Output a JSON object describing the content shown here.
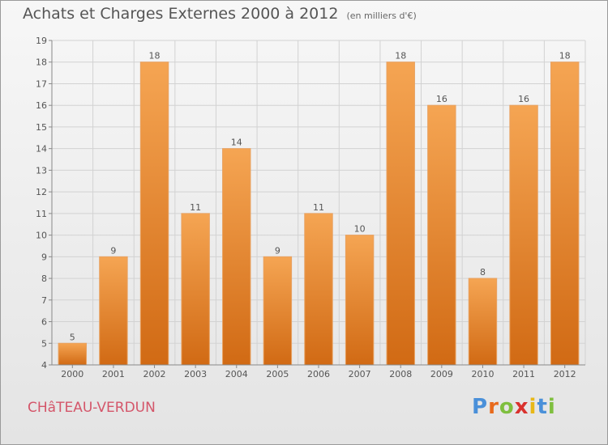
{
  "title": "Achats et Charges Externes 2000 à 2012",
  "subtitle": "(en milliers d'€)",
  "commune": "CHâTEAU-VERDUN",
  "logo": {
    "text": "Proxiti",
    "letter_colors": [
      "#4a90d9",
      "#e86a1c",
      "#7fbf3f",
      "#d9322e",
      "#e8b817",
      "#4a90d9",
      "#7fbf3f"
    ]
  },
  "chart_data": {
    "type": "bar",
    "categories": [
      "2000",
      "2001",
      "2002",
      "2003",
      "2004",
      "2005",
      "2006",
      "2007",
      "2008",
      "2009",
      "2010",
      "2011",
      "2012"
    ],
    "values": [
      5,
      9,
      18,
      11,
      14,
      9,
      11,
      10,
      18,
      16,
      8,
      16,
      18
    ],
    "ylim": [
      4,
      19
    ],
    "yticks": [
      4,
      5,
      6,
      7,
      8,
      9,
      10,
      11,
      12,
      13,
      14,
      15,
      16,
      17,
      18,
      19
    ],
    "grid": true,
    "bar_color_top": "#f5a553",
    "bar_color_bottom": "#d16a14",
    "title": "Achats et Charges Externes 2000 à 2012",
    "xlabel": "",
    "ylabel": ""
  }
}
